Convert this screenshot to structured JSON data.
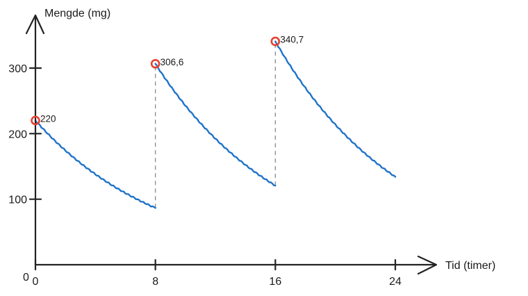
{
  "chart_data": {
    "type": "line",
    "title": "",
    "ylabel": "Mengde (mg)",
    "xlabel": "Tid (timer)",
    "origin_label": "0",
    "xticks": [
      0,
      8,
      16,
      24
    ],
    "yticks": [
      100,
      200,
      300
    ],
    "xlim": [
      0,
      25.7
    ],
    "ylim": [
      0,
      380
    ],
    "series": [
      {
        "segments": [
          {
            "x": [
              0,
              8
            ],
            "y": [
              220,
              86.6
            ]
          },
          {
            "x": [
              8,
              16
            ],
            "y": [
              306.6,
              120.7
            ]
          },
          {
            "x": [
              16,
              24
            ],
            "y": [
              340.7,
              134.1
            ]
          }
        ]
      }
    ],
    "drop_lines": [
      8,
      16
    ],
    "points": [
      {
        "x": 0,
        "y": 220,
        "label": "220"
      },
      {
        "x": 8,
        "y": 306.6,
        "label": "306,6"
      },
      {
        "x": 16,
        "y": 340.7,
        "label": "340,7"
      }
    ],
    "colors": {
      "line": "#1f73c9",
      "marker": "#e8402f",
      "axis": "#222222",
      "drop": "#8a8a8a"
    }
  }
}
